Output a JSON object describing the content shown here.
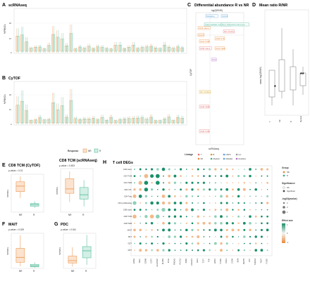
{
  "colors": {
    "nr": "#e8893a",
    "r": "#3db08e",
    "box": "#555555",
    "grid": "#e6e6e6"
  },
  "panels": {
    "A": {
      "letter": "A",
      "title": "scRNAseq",
      "ylabel": "%PBMCs"
    },
    "B": {
      "letter": "B",
      "title": "CyTOF",
      "ylabel": "%PBMCs"
    },
    "C": {
      "letter": "C",
      "title": "Differential abundance R vs NR",
      "xlabel": "scRNAseq",
      "ylabel": "CyTOF",
      "toplabel": "log2(R/NR)"
    },
    "D": {
      "letter": "D",
      "title": "Mean ratio R/NR",
      "ylabel": "mean log2(R/NR)"
    },
    "E": {
      "letter": "E",
      "title": "CD8 TCM (CyTOF)",
      "pvalue": "p-value = 0.01"
    },
    "E2": {
      "title": "CD8 TCM (scRNAseq)",
      "pvalue": "p-value = 0.603"
    },
    "F": {
      "letter": "F",
      "title": "MAIT",
      "pvalue": "p-value = 0.029"
    },
    "G": {
      "letter": "G",
      "title": "PDC",
      "pvalue": "p-value = 0.041"
    },
    "H": {
      "letter": "H",
      "title": "T cell DEGs"
    }
  },
  "response_legend": {
    "title": "Response",
    "items": [
      "NR",
      "R"
    ]
  },
  "lineage_legend": {
    "title": "Lineage",
    "items": [
      "T",
      "B",
      "HSPC",
      "Lin-",
      "NK",
      "Myeloid",
      "Multiplet",
      "Doublets"
    ]
  },
  "group_legend": {
    "title": "Group",
    "items": [
      "NR",
      "R"
    ]
  },
  "significance_legend": {
    "title": "Significance",
    "items": [
      "NS",
      "Significant"
    ]
  },
  "pval_legend": {
    "title": "-log10(pvalue)",
    "items": [
      "2",
      "3",
      "4"
    ]
  },
  "effect_legend": {
    "title": "Effect size",
    "items": [
      "1",
      "0",
      "-1"
    ]
  },
  "ab_ticks": {
    "yA": [
      "20",
      "10",
      "0"
    ],
    "yB": [
      "20",
      "10",
      "0"
    ]
  },
  "c_labels": [
    "Multiplet",
    "CDC2",
    "Intermediate monocyte",
    "Non-classical monocyte",
    "CD4 naive",
    "NK CD16+",
    "MAIT",
    "CD8 CTL",
    "CD4 TCM",
    "CD8 naive",
    "CD4 TEM",
    "PDC",
    "NK CD56+",
    "CD8 TEM",
    "CD8 TCM"
  ],
  "d_categories": [
    "T",
    "NK",
    "B",
    "Myeloid"
  ],
  "e_groups": [
    "NR",
    "R"
  ],
  "h_rows": [
    "CD4 naive",
    "CD4 TCM",
    "CD4 TEM",
    "CD4 CTL",
    "CD4 Treg",
    "CD4 proliferating",
    "CD8 naive",
    "CD8 TCM",
    "CD8 TEM",
    "MAIT",
    "NKT",
    "GDT",
    "DNT"
  ],
  "h_cols": [
    "GZMA",
    "SELL",
    "GZMB",
    "CCR7",
    "ALOX5AP",
    "KLRB1",
    "IFNG",
    "PRDM1",
    "PLCG2",
    "ZEB2",
    "CX3CR1",
    "LEF1",
    "TCF7",
    "TNF",
    "HOPX",
    "ITGB1",
    "PRF1",
    "CCR6",
    "B2M",
    "SEPT8",
    "CD7",
    "S100A4",
    "TIGIT",
    "ITGB7"
  ],
  "chart_data": [
    {
      "type": "box",
      "panel": "E",
      "title": "CD8 TCM (CyTOF)",
      "categories": [
        "NR",
        "R"
      ],
      "series": [
        {
          "name": "NR",
          "median": 2.4,
          "q1": 1.9,
          "q3": 2.8,
          "min": 1.3,
          "max": 3.3
        },
        {
          "name": "R",
          "median": 0.7,
          "q1": 0.55,
          "q3": 0.8,
          "min": 0.4,
          "max": 1.0
        }
      ],
      "ylim": [
        0,
        3.5
      ]
    },
    {
      "type": "box",
      "panel": "E2",
      "title": "CD8 TCM (scRNAseq)",
      "categories": [
        "NR",
        "R"
      ],
      "series": [
        {
          "name": "NR",
          "median": 1.6,
          "q1": 1.3,
          "q3": 2.3,
          "min": 0.7,
          "max": 2.8
        },
        {
          "name": "R",
          "median": 1.2,
          "q1": 0.9,
          "q3": 1.7,
          "min": 0.4,
          "max": 2.2
        }
      ],
      "ylim": [
        0,
        3
      ]
    },
    {
      "type": "box",
      "panel": "F",
      "title": "MAIT",
      "categories": [
        "NR",
        "R"
      ],
      "series": [
        {
          "name": "NR",
          "median": 1.1,
          "q1": 0.6,
          "q3": 2.0,
          "min": 0.2,
          "max": 3.3
        },
        {
          "name": "R",
          "median": 0.25,
          "q1": 0.15,
          "q3": 0.4,
          "min": 0.05,
          "max": 0.6
        }
      ],
      "ylim": [
        0,
        3.5
      ]
    },
    {
      "type": "box",
      "panel": "G",
      "title": "PDC",
      "categories": [
        "NR",
        "R"
      ],
      "series": [
        {
          "name": "NR",
          "median": 0.22,
          "q1": 0.15,
          "q3": 0.35,
          "min": 0.05,
          "max": 0.6
        },
        {
          "name": "R",
          "median": 0.5,
          "q1": 0.3,
          "q3": 0.62,
          "min": 0.1,
          "max": 0.95
        }
      ],
      "ylim": [
        0,
        1
      ]
    }
  ]
}
